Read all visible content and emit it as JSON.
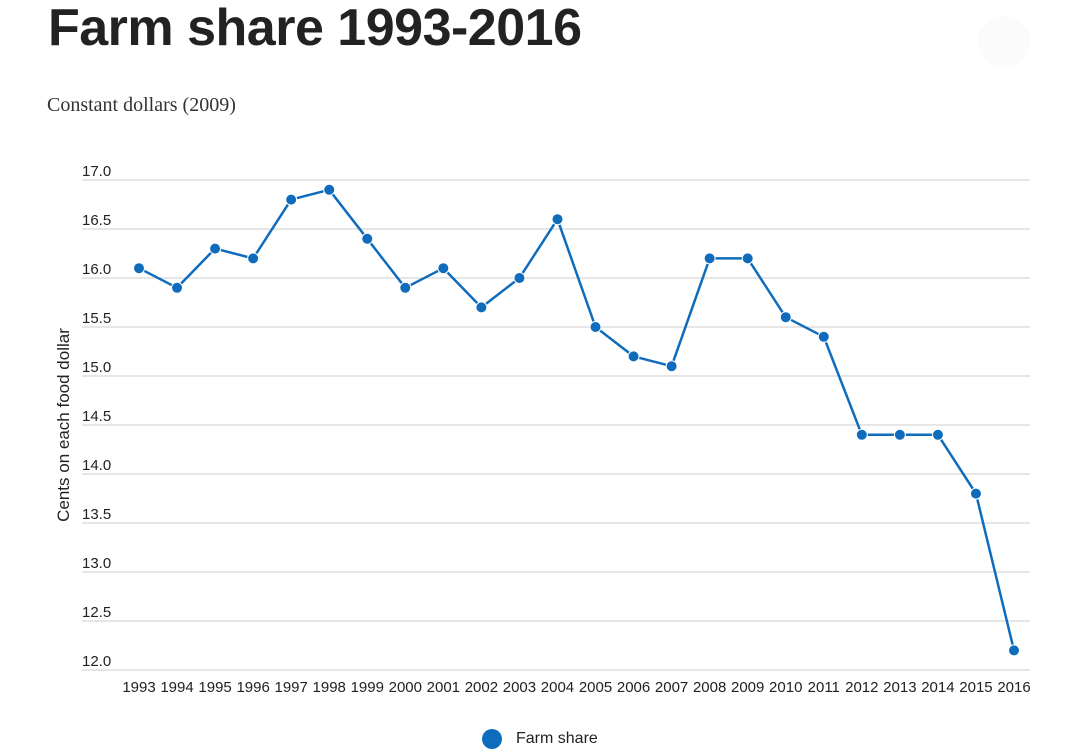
{
  "title": "Farm share 1993-2016",
  "subtitle": "Constant dollars (2009)",
  "colors": {
    "series": "#0f6cbd",
    "grid": "#cccccc",
    "text": "#222222"
  },
  "legend": {
    "label": "Farm share",
    "placement": "bottom-center"
  },
  "chart_data": {
    "type": "line",
    "title": "Farm share 1993-2016",
    "subtitle": "Constant dollars (2009)",
    "xlabel": "",
    "ylabel": "Cents on each food dollar",
    "ylim": [
      12.0,
      17.0
    ],
    "yticks": [
      "12.0",
      "12.5",
      "13.0",
      "13.5",
      "14.0",
      "14.5",
      "15.0",
      "15.5",
      "16.0",
      "16.5",
      "17.0"
    ],
    "grid": true,
    "markers": true,
    "legend_position": "bottom",
    "categories": [
      "1993",
      "1994",
      "1995",
      "1996",
      "1997",
      "1998",
      "1999",
      "2000",
      "2001",
      "2002",
      "2003",
      "2004",
      "2005",
      "2006",
      "2007",
      "2008",
      "2009",
      "2010",
      "2011",
      "2012",
      "2013",
      "2014",
      "2015",
      "2016"
    ],
    "series": [
      {
        "name": "Farm share",
        "values": [
          16.1,
          15.9,
          16.3,
          16.2,
          16.8,
          16.9,
          16.4,
          15.9,
          16.1,
          15.7,
          16.0,
          16.6,
          15.5,
          15.2,
          15.1,
          16.2,
          16.2,
          15.6,
          15.4,
          14.4,
          14.4,
          14.4,
          13.8,
          12.2
        ]
      }
    ]
  }
}
